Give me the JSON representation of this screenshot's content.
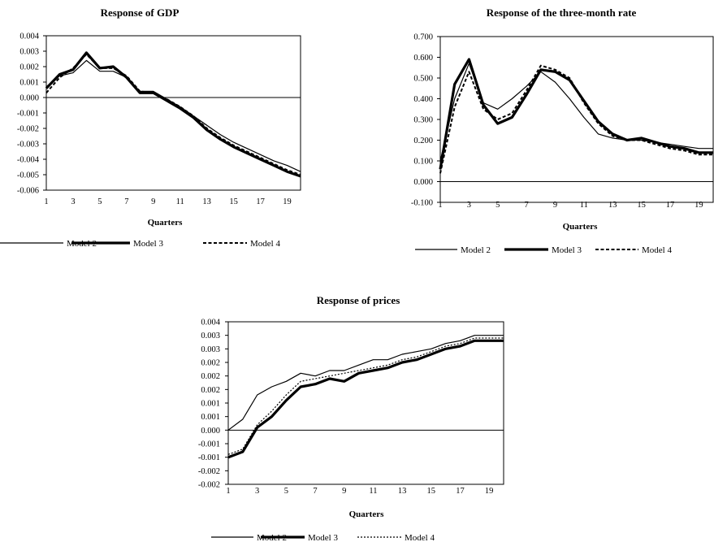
{
  "chart_data": [
    {
      "type": "line",
      "title": "Response of GDP",
      "xlabel": "Quarters",
      "ylabel": "",
      "x": [
        1,
        2,
        3,
        4,
        5,
        6,
        7,
        8,
        9,
        10,
        11,
        12,
        13,
        14,
        15,
        16,
        17,
        18,
        19,
        20
      ],
      "xticks": [
        "1",
        "3",
        "5",
        "7",
        "9",
        "11",
        "13",
        "15",
        "17",
        "19"
      ],
      "ylim": [
        -0.006,
        0.004
      ],
      "yticks": [
        "0.004",
        "0.003",
        "0.002",
        "0.001",
        "0.000",
        "-0.001",
        "-0.002",
        "-0.003",
        "-0.004",
        "-0.005",
        "-0.006"
      ],
      "legend": [
        "Model 2",
        "Model 3",
        "Model 4"
      ],
      "grid": false,
      "series": [
        {
          "name": "Model 2",
          "style": "thin",
          "values": [
            0.0007,
            0.0014,
            0.0016,
            0.0024,
            0.0017,
            0.0017,
            0.0013,
            0.0004,
            0.0004,
            -0.0001,
            -0.0006,
            -0.0012,
            -0.0018,
            -0.0024,
            -0.0029,
            -0.0033,
            -0.0037,
            -0.0041,
            -0.0044,
            -0.0048
          ]
        },
        {
          "name": "Model 3",
          "style": "thick",
          "values": [
            0.0006,
            0.0015,
            0.0018,
            0.0029,
            0.0019,
            0.002,
            0.0013,
            0.0003,
            0.0003,
            -0.0002,
            -0.0007,
            -0.0013,
            -0.0021,
            -0.0027,
            -0.0032,
            -0.0036,
            -0.004,
            -0.0044,
            -0.0048,
            -0.0051
          ]
        },
        {
          "name": "Model 4",
          "style": "dashed",
          "values": [
            0.0003,
            0.0013,
            0.0019,
            0.0028,
            0.0019,
            0.0019,
            0.0014,
            0.0004,
            0.0003,
            -0.0001,
            -0.0006,
            -0.0012,
            -0.002,
            -0.0026,
            -0.0031,
            -0.0035,
            -0.0039,
            -0.0043,
            -0.0047,
            -0.005
          ]
        }
      ]
    },
    {
      "type": "line",
      "title": "Response of the three-month rate",
      "xlabel": "Quarters",
      "ylabel": "",
      "x": [
        1,
        2,
        3,
        4,
        5,
        6,
        7,
        8,
        9,
        10,
        11,
        12,
        13,
        14,
        15,
        16,
        17,
        18,
        19,
        20
      ],
      "xticks": [
        "1",
        "3",
        "5",
        "7",
        "9",
        "11",
        "13",
        "15",
        "17",
        "19"
      ],
      "ylim": [
        -0.1,
        0.7
      ],
      "yticks": [
        "0.700",
        "0.600",
        "0.500",
        "0.400",
        "0.300",
        "0.200",
        "0.100",
        "0.000",
        "-0.100"
      ],
      "legend": [
        "Model 2",
        "Model 3",
        "Model 4"
      ],
      "grid": false,
      "series": [
        {
          "name": "Model 2",
          "style": "thin",
          "values": [
            0.1,
            0.4,
            0.57,
            0.38,
            0.35,
            0.4,
            0.46,
            0.53,
            0.48,
            0.4,
            0.31,
            0.23,
            0.21,
            0.2,
            0.2,
            0.19,
            0.18,
            0.17,
            0.16,
            0.16
          ]
        },
        {
          "name": "Model 3",
          "style": "thick",
          "values": [
            0.06,
            0.47,
            0.59,
            0.37,
            0.28,
            0.31,
            0.42,
            0.54,
            0.53,
            0.49,
            0.39,
            0.29,
            0.23,
            0.2,
            0.21,
            0.19,
            0.17,
            0.16,
            0.14,
            0.14
          ]
        },
        {
          "name": "Model 4",
          "style": "dashed",
          "values": [
            0.04,
            0.36,
            0.53,
            0.35,
            0.3,
            0.33,
            0.44,
            0.56,
            0.54,
            0.5,
            0.38,
            0.28,
            0.22,
            0.2,
            0.2,
            0.18,
            0.16,
            0.15,
            0.13,
            0.13
          ]
        }
      ]
    },
    {
      "type": "line",
      "title": "Response of prices",
      "xlabel": "Quarters",
      "ylabel": "",
      "x": [
        1,
        2,
        3,
        4,
        5,
        6,
        7,
        8,
        9,
        10,
        11,
        12,
        13,
        14,
        15,
        16,
        17,
        18,
        19,
        20
      ],
      "xticks": [
        "1",
        "3",
        "5",
        "7",
        "9",
        "11",
        "13",
        "15",
        "17",
        "19"
      ],
      "ylim": [
        -0.002,
        0.004
      ],
      "ytick_values": [
        0.004,
        0.0035,
        0.003,
        0.0025,
        0.002,
        0.0015,
        0.001,
        0.0005,
        0.0,
        -0.0005,
        -0.001,
        -0.0015,
        -0.002
      ],
      "yticks": [
        "0.004",
        "0.003",
        "0.003",
        "0.002",
        "0.002",
        "0.002",
        "0.001",
        "0.001",
        "0.000",
        "-0.001",
        "-0.001",
        "-0.002",
        "-0.002"
      ],
      "legend": [
        "Model 2",
        "Model 3",
        "Model 4"
      ],
      "grid": false,
      "series": [
        {
          "name": "Model 2",
          "style": "thin",
          "values": [
            0.0,
            0.0004,
            0.0013,
            0.0016,
            0.0018,
            0.0021,
            0.002,
            0.0022,
            0.0022,
            0.0024,
            0.0026,
            0.0026,
            0.0028,
            0.0029,
            0.003,
            0.0032,
            0.0033,
            0.0035,
            0.0035,
            0.0035
          ]
        },
        {
          "name": "Model 3",
          "style": "thick",
          "values": [
            -0.001,
            -0.0008,
            0.0001,
            0.0005,
            0.0011,
            0.0016,
            0.0017,
            0.0019,
            0.0018,
            0.0021,
            0.0022,
            0.0023,
            0.0025,
            0.0026,
            0.0028,
            0.003,
            0.0031,
            0.0033,
            0.0033,
            0.0033
          ]
        },
        {
          "name": "Model 4",
          "style": "dotted",
          "values": [
            -0.0009,
            -0.0007,
            0.0002,
            0.0007,
            0.0013,
            0.0018,
            0.0019,
            0.002,
            0.0021,
            0.0022,
            0.0023,
            0.0024,
            0.0026,
            0.0027,
            0.0029,
            0.0031,
            0.0032,
            0.0034,
            0.0034,
            0.0034
          ]
        }
      ]
    }
  ]
}
